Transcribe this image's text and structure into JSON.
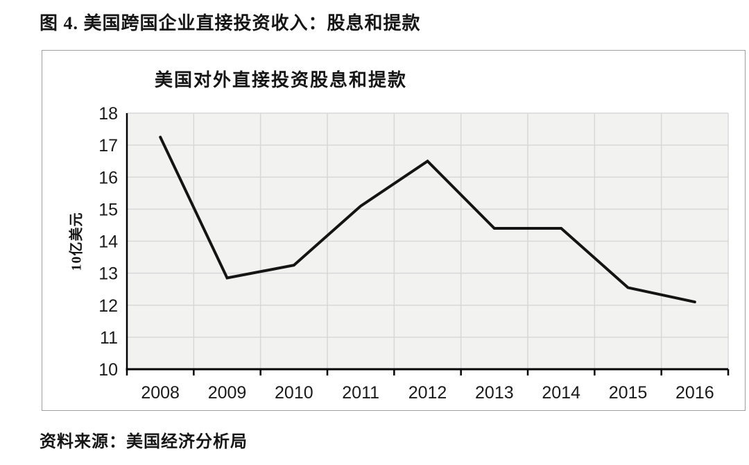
{
  "page": {
    "figure_title": "图 4. 美国跨国企业直接投资收入：股息和提款",
    "source_note": "资料来源：美国经济分析局"
  },
  "chart_data": {
    "type": "line",
    "title": "美国对外直接投资股息和提款",
    "xlabel": "",
    "ylabel": "10亿美元",
    "categories": [
      "2008",
      "2009",
      "2010",
      "2011",
      "2012",
      "2013",
      "2014",
      "2015",
      "2016"
    ],
    "values": [
      17.25,
      12.85,
      13.25,
      15.1,
      16.5,
      14.4,
      14.4,
      12.55,
      12.1
    ],
    "ylim": [
      10,
      18
    ],
    "ytick_step": 1,
    "grid": true,
    "legend_position": "none",
    "colors": {
      "line": "#141414",
      "plot_background": "#f2f2f1",
      "gridline": "#d8d8d8",
      "axis": "#000000",
      "text": "#1a1a1a",
      "frame_border": "#9e9e9e"
    }
  }
}
